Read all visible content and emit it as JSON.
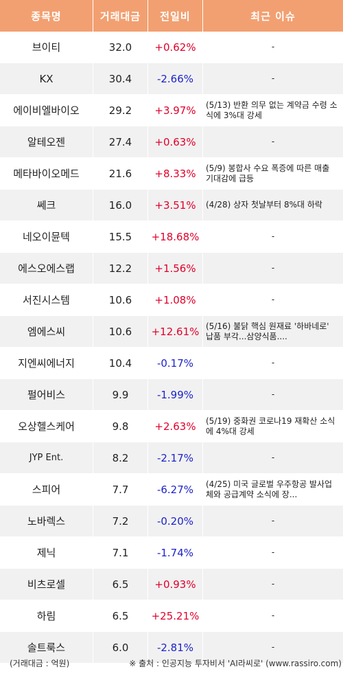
{
  "header": {
    "col_name": "종목명",
    "col_volume": "거래대금",
    "col_change": "전일비",
    "col_issue": "최근 이슈"
  },
  "rows": [
    {
      "name": "브이티",
      "volume": "32.0",
      "change": "+0.62%",
      "direction": "up",
      "issue": "-"
    },
    {
      "name": "KX",
      "volume": "30.4",
      "change": "-2.66%",
      "direction": "down",
      "issue": "-"
    },
    {
      "name": "에이비엘바이오",
      "volume": "29.2",
      "change": "+3.97%",
      "direction": "up",
      "issue": "(5/13) 반환 의무 없는 계약금 수령 소식에 3%대 강세"
    },
    {
      "name": "알테오젠",
      "volume": "27.4",
      "change": "+0.63%",
      "direction": "up",
      "issue": "-"
    },
    {
      "name": "메타바이오메드",
      "volume": "21.6",
      "change": "+8.33%",
      "direction": "up",
      "issue": "(5/9) 봉합사 수요 폭증에 따른 매출 기대감에 급등"
    },
    {
      "name": "쎄크",
      "volume": "16.0",
      "change": "+3.51%",
      "direction": "up",
      "issue": "(4/28) 상자 첫날부터 8%대 하락"
    },
    {
      "name": "네오이뮨텍",
      "volume": "15.5",
      "change": "+18.68%",
      "direction": "up",
      "issue": "-"
    },
    {
      "name": "에스오에스랩",
      "volume": "12.2",
      "change": "+1.56%",
      "direction": "up",
      "issue": "-"
    },
    {
      "name": "서진시스템",
      "volume": "10.6",
      "change": "+1.08%",
      "direction": "up",
      "issue": "-"
    },
    {
      "name": "엠에스씨",
      "volume": "10.6",
      "change": "+12.61%",
      "direction": "up",
      "issue": "(5/16) 불닭 핵심 원재료 '하바네로' 납품 부각...삼양식품...."
    },
    {
      "name": "지엔씨에너지",
      "volume": "10.4",
      "change": "-0.17%",
      "direction": "down",
      "issue": "-"
    },
    {
      "name": "펄어비스",
      "volume": "9.9",
      "change": "-1.99%",
      "direction": "down",
      "issue": "-"
    },
    {
      "name": "오상헬스케어",
      "volume": "9.8",
      "change": "+2.63%",
      "direction": "up",
      "issue": "(5/19) 중화권 코로나19 재확산 소식에 4%대 강세"
    },
    {
      "name": "JYP Ent.",
      "volume": "8.2",
      "change": "-2.17%",
      "direction": "down",
      "issue": "-",
      "small": true
    },
    {
      "name": "스피어",
      "volume": "7.7",
      "change": "-6.27%",
      "direction": "down",
      "issue": "(4/25) 미국 글로벌 우주항공 발사업체와 공급계약 소식에 장..."
    },
    {
      "name": "노바렉스",
      "volume": "7.2",
      "change": "-0.20%",
      "direction": "down",
      "issue": "-"
    },
    {
      "name": "제닉",
      "volume": "7.1",
      "change": "-1.74%",
      "direction": "down",
      "issue": "-"
    },
    {
      "name": "비츠로셀",
      "volume": "6.5",
      "change": "+0.93%",
      "direction": "up",
      "issue": "-"
    },
    {
      "name": "하림",
      "volume": "6.5",
      "change": "+25.21%",
      "direction": "up",
      "issue": "-"
    },
    {
      "name": "솔트룩스",
      "volume": "6.0",
      "change": "-2.81%",
      "direction": "down",
      "issue": "-"
    }
  ],
  "footer": {
    "unit_note": "(거래대금 : 억원)",
    "source_note": "※ 출처 : 인공지능 투자비서 'AI라씨로' (www.rassiro.com)"
  },
  "colors": {
    "header_bg": "#f2a071",
    "stripe_bg": "#f1f1f1",
    "up": "#e0002a",
    "down": "#1c23c8"
  }
}
